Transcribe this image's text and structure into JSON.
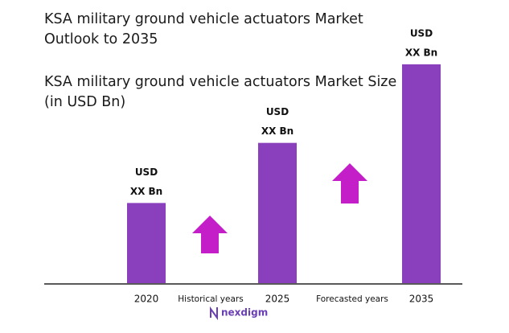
{
  "chart_data": {
    "type": "bar",
    "title": "KSA military ground vehicle actuators Market Outlook to 2035",
    "subtitle": "KSA military ground vehicle actuators Market Size (in USD Bn)",
    "categories": [
      "2020",
      "2025",
      "2035"
    ],
    "values": [
      100,
      175,
      273
    ],
    "bar_labels": [
      [
        "USD",
        "XX Bn"
      ],
      [
        "USD",
        "XX Bn"
      ],
      [
        "USD",
        "XX Bn"
      ]
    ],
    "color": "#8a3fbd",
    "ylim": [
      0,
      273
    ],
    "period_labels": [
      "Historical years",
      "Forecasted years"
    ],
    "arrow_color": "#c41ec9",
    "logo": "nexdigm"
  }
}
